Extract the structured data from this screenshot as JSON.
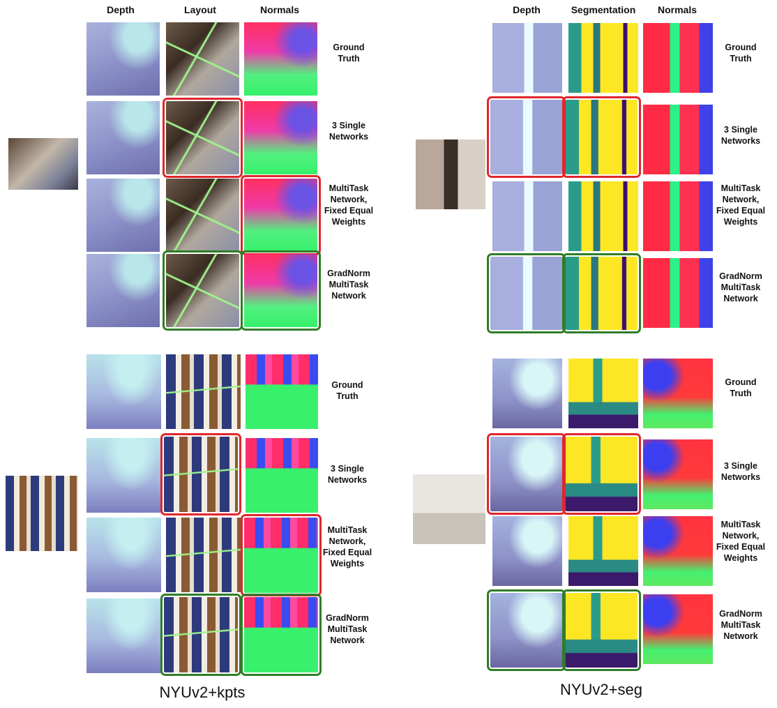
{
  "panels": {
    "kpts": {
      "caption": "NYUv2+kpts",
      "columns": [
        "Depth",
        "Layout",
        "Normals"
      ],
      "rows": [
        {
          "label": "Ground\nTruth"
        },
        {
          "label": "3 Single\nNetworks"
        },
        {
          "label": "MultiTask\nNetwork,\nFixed Equal\nWeights"
        },
        {
          "label": "GradNorm\nMultiTask\nNetwork"
        }
      ]
    },
    "seg": {
      "caption": "NYUv2+seg",
      "columns": [
        "Depth",
        "Segmentation",
        "Normals"
      ],
      "rows": [
        {
          "label": "Ground\nTruth"
        },
        {
          "label": "3 Single\nNetworks"
        },
        {
          "label": "MultiTask\nNetwork,\nFixed Equal\nWeights"
        },
        {
          "label": "GradNorm\nMultiTask\nNetwork"
        }
      ]
    }
  },
  "highlight_colors": {
    "worse": "#e0262b",
    "best": "#2f7d26"
  }
}
